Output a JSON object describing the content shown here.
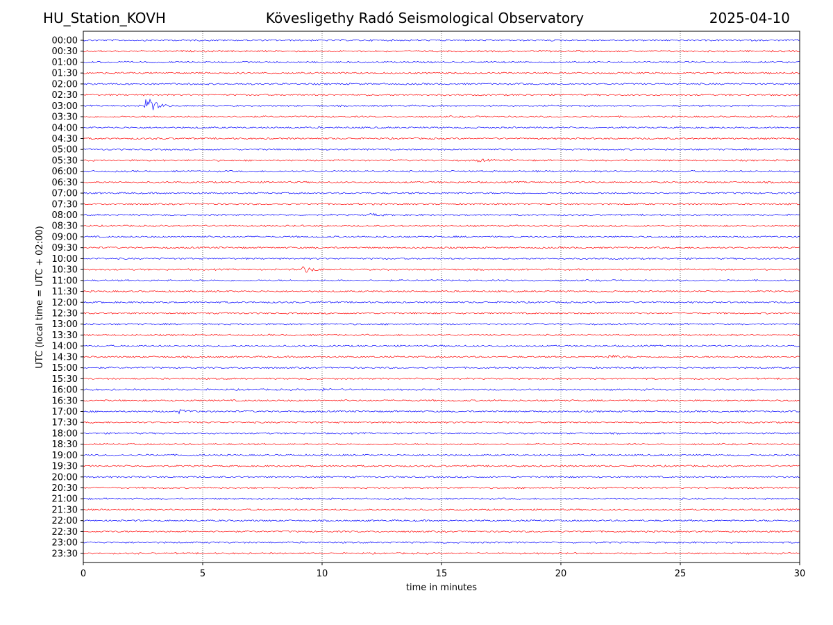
{
  "header": {
    "station": "HU_Station_KOVH",
    "observatory": "Kövesligethy Radó Seismological Observatory",
    "date": "2025-04-10"
  },
  "chart_data": {
    "type": "line",
    "title": "Kövesligethy Radó Seismological Observatory",
    "xlabel": "time in minutes",
    "ylabel": "UTC (local time = UTC + 02:00)",
    "xlim": [
      0,
      30
    ],
    "xticks": [
      0,
      5,
      10,
      15,
      20,
      25,
      30
    ],
    "vgrid": [
      5,
      10,
      15,
      20,
      25
    ],
    "grid": "vertical dotted lines",
    "trace_colors": [
      "#0000ff",
      "#ff0000"
    ],
    "rows": [
      "00:00",
      "00:30",
      "01:00",
      "01:30",
      "02:00",
      "02:30",
      "03:00",
      "03:30",
      "04:00",
      "04:30",
      "05:00",
      "05:30",
      "06:00",
      "06:30",
      "07:00",
      "07:30",
      "08:00",
      "08:30",
      "09:00",
      "09:30",
      "10:00",
      "10:30",
      "11:00",
      "11:30",
      "12:00",
      "12:30",
      "13:00",
      "13:30",
      "14:00",
      "14:30",
      "15:00",
      "15:30",
      "16:00",
      "16:30",
      "17:00",
      "17:30",
      "18:00",
      "18:30",
      "19:00",
      "19:30",
      "20:00",
      "20:30",
      "21:00",
      "21:30",
      "22:00",
      "22:30",
      "23:00",
      "23:30"
    ],
    "events": [
      {
        "row": "03:00",
        "minute": 2.6,
        "amplitude": 1.0
      },
      {
        "row": "10:30",
        "minute": 9.2,
        "amplitude": 0.35
      },
      {
        "row": "14:30",
        "minute": 22.0,
        "amplitude": 0.2
      },
      {
        "row": "16:00",
        "minute": 9.9,
        "amplitude": 0.15
      },
      {
        "row": "17:00",
        "minute": 4.0,
        "amplitude": 0.15
      },
      {
        "row": "08:00",
        "minute": 12.0,
        "amplitude": 0.15
      },
      {
        "row": "05:30",
        "minute": 16.5,
        "amplitude": 0.12
      }
    ]
  }
}
